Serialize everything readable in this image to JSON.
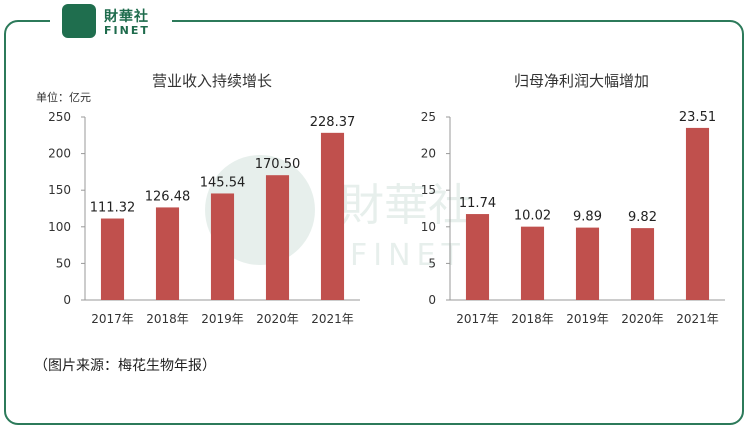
{
  "logo": {
    "cn": "財華社",
    "en": "FINET"
  },
  "watermark": {
    "cn": "財華社",
    "en": "FINET"
  },
  "unit_label": "单位：亿元",
  "source": "（图片来源：梅花生物年报）",
  "colors": {
    "bar": "#c0504d",
    "frame": "#2c7a5a",
    "logo": "#1e6b4c"
  },
  "chart_data": [
    {
      "type": "bar",
      "title": "营业收入持续增长",
      "categories": [
        "2017年",
        "2018年",
        "2019年",
        "2020年",
        "2021年"
      ],
      "values": [
        111.32,
        126.48,
        145.54,
        170.5,
        228.37
      ],
      "value_labels": [
        "111.32",
        "126.48",
        "145.54",
        "170.50",
        "228.37"
      ],
      "yticks": [
        "0",
        "50",
        "100",
        "150",
        "200",
        "250"
      ],
      "ylim": [
        0,
        250
      ],
      "grid": false
    },
    {
      "type": "bar",
      "title": "归母净利润大幅增加",
      "categories": [
        "2017年",
        "2018年",
        "2019年",
        "2020年",
        "2021年"
      ],
      "values": [
        11.74,
        10.02,
        9.89,
        9.82,
        23.51
      ],
      "value_labels": [
        "11.74",
        "10.02",
        "9.89",
        "9.82",
        "23.51"
      ],
      "yticks": [
        "0",
        "5",
        "10",
        "15",
        "20",
        "25"
      ],
      "ylim": [
        0,
        25
      ],
      "grid": false
    }
  ]
}
